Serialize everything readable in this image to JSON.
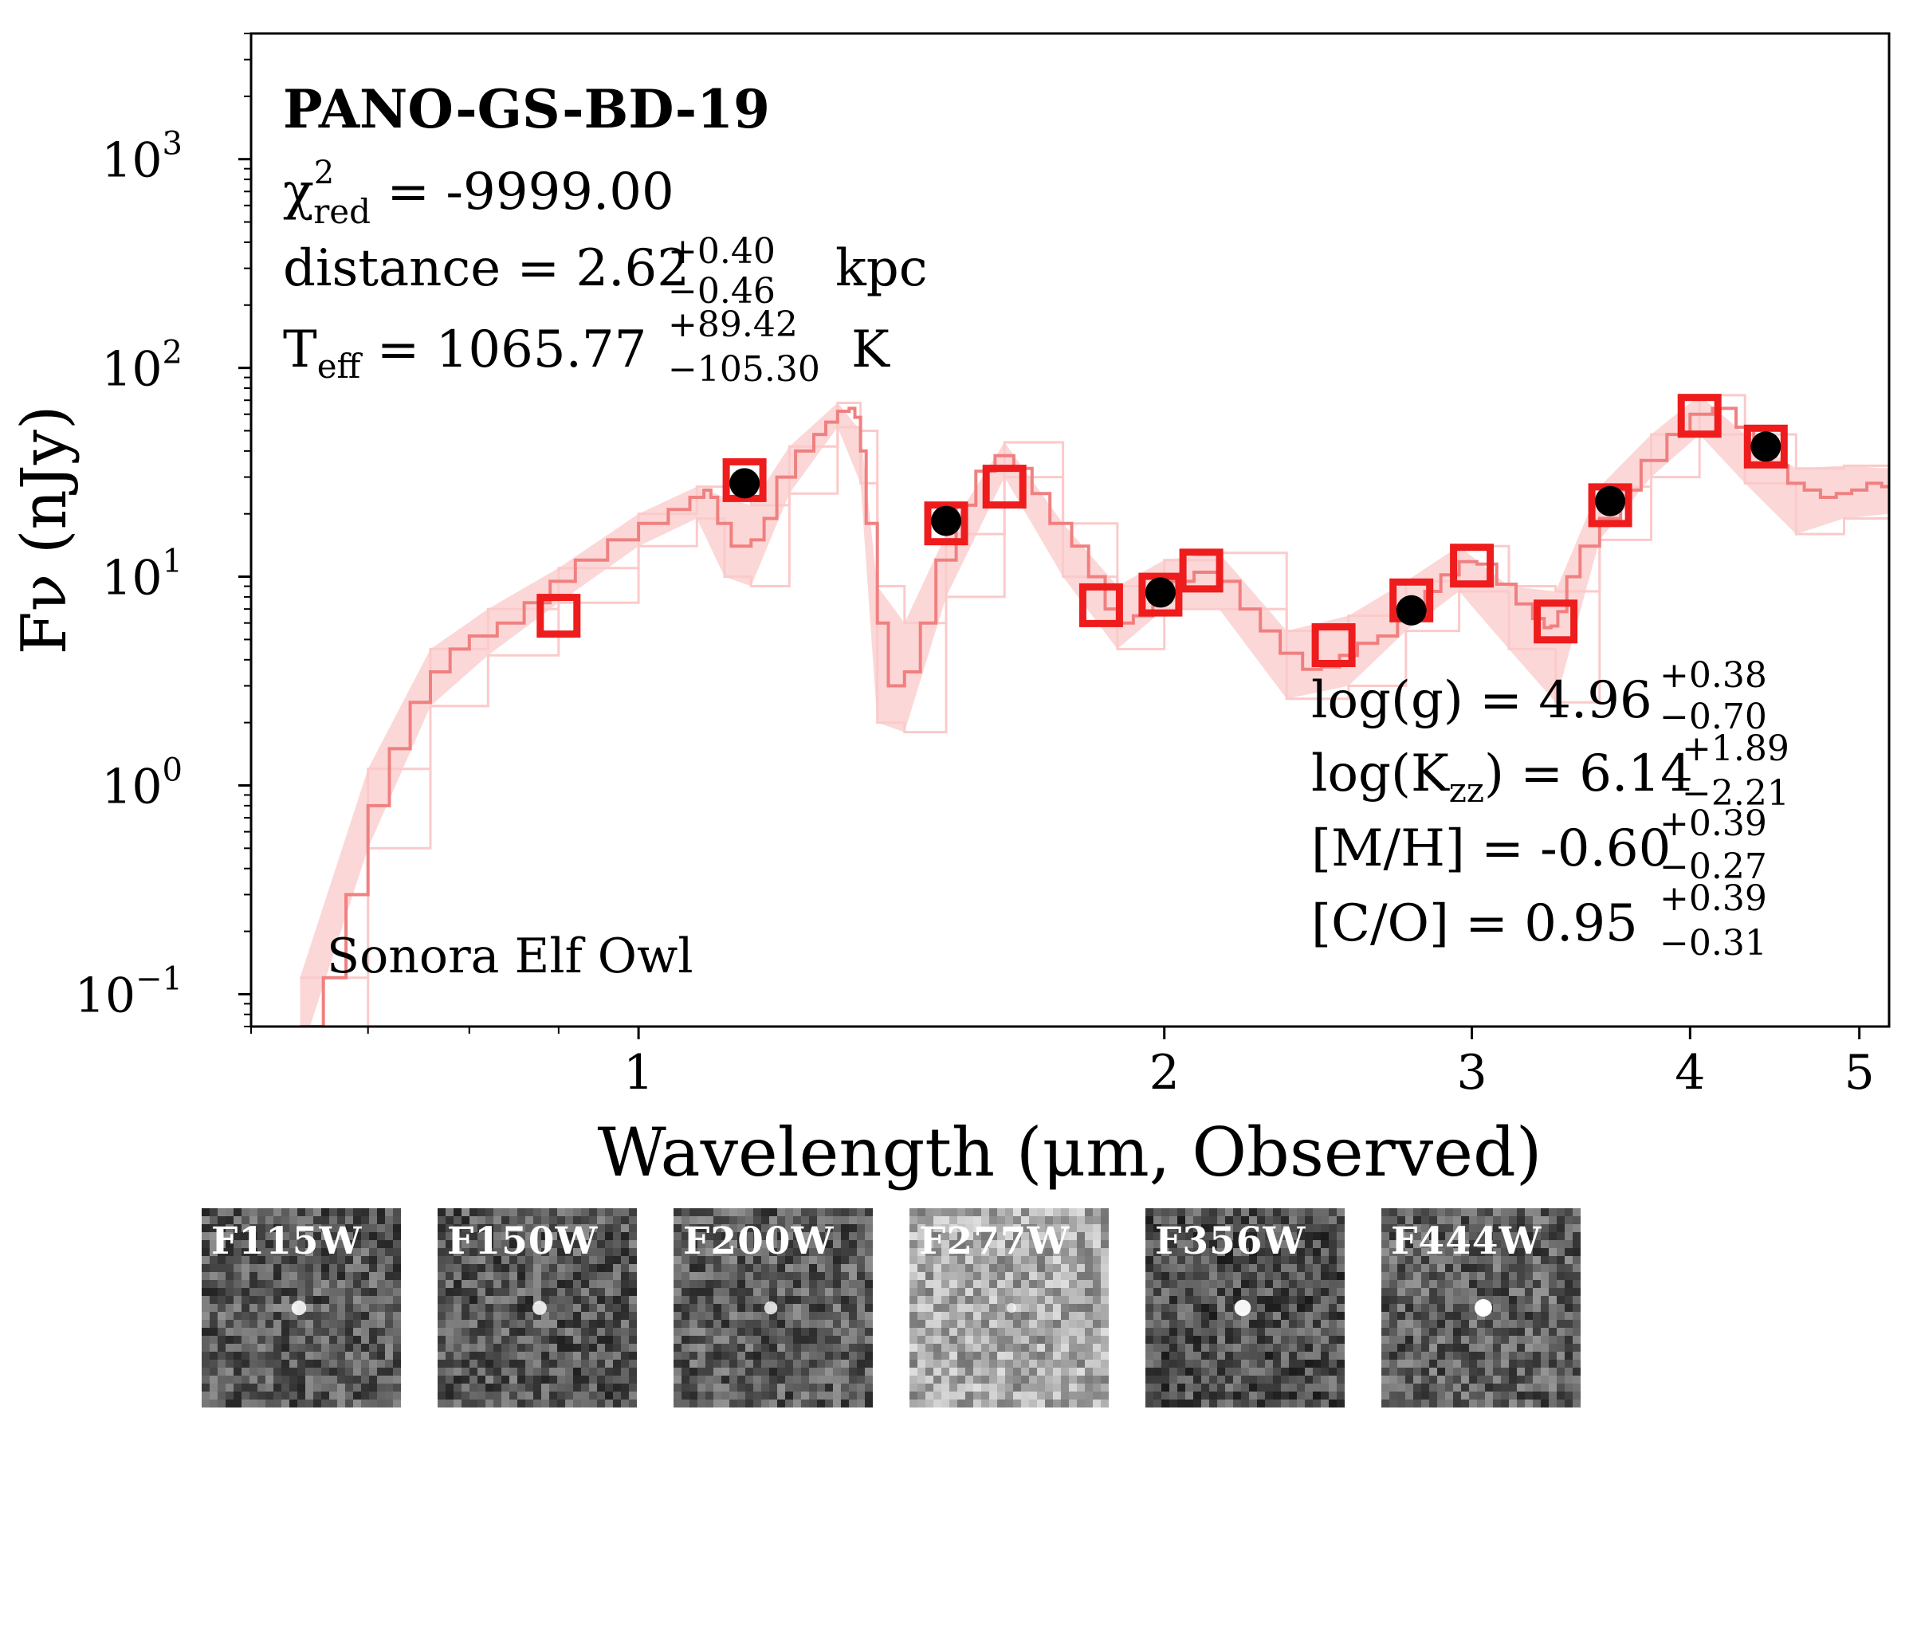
{
  "chart_data": {
    "type": "scatter",
    "title": "PANO-GS-BD-19",
    "xlabel": "Wavelength (μm, Observed)",
    "ylabel": "Fν (nJy)",
    "xscale": "log",
    "yscale": "log",
    "xlim": [
      0.6,
      5.2
    ],
    "ylim": [
      0.07,
      4000
    ],
    "xticks": [
      {
        "value": 1,
        "label": "1"
      },
      {
        "value": 2,
        "label": "2"
      },
      {
        "value": 3,
        "label": "3"
      },
      {
        "value": 4,
        "label": "4"
      },
      {
        "value": 5,
        "label": "5"
      }
    ],
    "yticks": [
      {
        "value": 0.1,
        "base": "10",
        "exp": "−1"
      },
      {
        "value": 1,
        "base": "10",
        "exp": "0"
      },
      {
        "value": 10,
        "base": "10",
        "exp": "1"
      },
      {
        "value": 100,
        "base": "10",
        "exp": "2"
      },
      {
        "value": 1000,
        "base": "10",
        "exp": "3"
      }
    ],
    "annotations": {
      "model_name": "Sonora Elf Owl",
      "chi2": {
        "symbol": "χ",
        "sup": "2",
        "sub": "red",
        "text": " = -9999.00"
      },
      "distance": {
        "label": "distance = 2.62",
        "plus": "+0.40",
        "minus": "−0.46",
        "unit": "kpc"
      },
      "teff": {
        "label_main": "T",
        "label_sub": "eff",
        "value": " = 1065.77",
        "plus": "+89.42",
        "minus": "−105.30",
        "unit": "K"
      },
      "logg": {
        "label": "log(g) = 4.96",
        "plus": "+0.38",
        "minus": "−0.70"
      },
      "logkzz": {
        "label_a": "log(K",
        "label_sub": "zz",
        "label_b": ") = 6.14",
        "plus": "+1.89",
        "minus": "−2.21"
      },
      "mh": {
        "label": "[M/H] = -0.60",
        "plus": "+0.39",
        "minus": "−0.27"
      },
      "co": {
        "label": "[C/O] = 0.95",
        "plus": "+0.39",
        "minus": "−0.31"
      }
    },
    "model_photometry": [
      {
        "x": 0.9,
        "y": 6.5
      },
      {
        "x": 1.15,
        "y": 29
      },
      {
        "x": 1.5,
        "y": 18
      },
      {
        "x": 1.62,
        "y": 27
      },
      {
        "x": 1.84,
        "y": 7.3
      },
      {
        "x": 1.99,
        "y": 8.2
      },
      {
        "x": 2.1,
        "y": 10.7
      },
      {
        "x": 2.5,
        "y": 4.7
      },
      {
        "x": 2.77,
        "y": 7.7
      },
      {
        "x": 3.0,
        "y": 11.3
      },
      {
        "x": 3.35,
        "y": 6.1
      },
      {
        "x": 3.6,
        "y": 22
      },
      {
        "x": 4.05,
        "y": 59
      },
      {
        "x": 4.42,
        "y": 42
      }
    ],
    "observed_photometry": [
      {
        "x": 1.15,
        "y": 28
      },
      {
        "x": 1.5,
        "y": 18.5
      },
      {
        "x": 1.99,
        "y": 8.4
      },
      {
        "x": 2.77,
        "y": 6.9
      },
      {
        "x": 3.6,
        "y": 23
      },
      {
        "x": 4.42,
        "y": 42
      }
    ],
    "model_spectrum": {
      "x": [
        0.64,
        0.66,
        0.68,
        0.7,
        0.72,
        0.74,
        0.76,
        0.78,
        0.8,
        0.83,
        0.86,
        0.89,
        0.92,
        0.96,
        1.0,
        1.04,
        1.07,
        1.09,
        1.1,
        1.11,
        1.13,
        1.16,
        1.18,
        1.2,
        1.23,
        1.26,
        1.28,
        1.3,
        1.32,
        1.33,
        1.34,
        1.35,
        1.37,
        1.39,
        1.42,
        1.45,
        1.48,
        1.52,
        1.56,
        1.6,
        1.64,
        1.68,
        1.72,
        1.77,
        1.81,
        1.85,
        1.88,
        1.92,
        1.97,
        2.02,
        2.08,
        2.15,
        2.21,
        2.27,
        2.33,
        2.4,
        2.46,
        2.52,
        2.58,
        2.65,
        2.72,
        2.77,
        2.82,
        2.88,
        2.95,
        3.02,
        3.1,
        3.18,
        3.25,
        3.3,
        3.33,
        3.36,
        3.4,
        3.46,
        3.55,
        3.65,
        3.75,
        3.88,
        4.0,
        4.12,
        4.25,
        4.35,
        4.45,
        4.55,
        4.65,
        4.75,
        4.85,
        4.95,
        5.05,
        5.15,
        5.2
      ],
      "y": [
        0.07,
        0.12,
        0.3,
        0.8,
        1.5,
        2.5,
        3.5,
        4.5,
        5.2,
        6.0,
        7.5,
        9.5,
        12,
        15,
        18,
        21,
        24,
        26,
        24,
        18,
        14,
        15,
        19,
        30,
        40,
        48,
        55,
        62,
        64,
        58,
        40,
        18,
        6,
        3.0,
        3.5,
        6,
        12,
        22,
        32,
        38,
        33,
        25,
        18,
        14,
        10,
        7.0,
        6.0,
        6.5,
        8.0,
        9.5,
        10.5,
        9.5,
        7.0,
        5.5,
        4.3,
        3.6,
        3.7,
        4.2,
        4.8,
        5.2,
        6.2,
        7.2,
        8.5,
        10.2,
        11.8,
        11.5,
        9.2,
        7.4,
        6.3,
        5.7,
        5.8,
        6.8,
        10,
        14,
        19,
        26,
        36,
        48,
        60,
        64,
        52,
        42,
        34,
        28,
        26,
        24,
        25,
        26,
        28,
        27,
        27
      ]
    },
    "model_spectrum_upper": {
      "x": [
        0.64,
        0.7,
        0.76,
        0.82,
        0.9,
        1.0,
        1.08,
        1.12,
        1.16,
        1.22,
        1.3,
        1.34,
        1.37,
        1.42,
        1.5,
        1.62,
        1.75,
        1.88,
        2.0,
        2.15,
        2.35,
        2.55,
        2.75,
        2.95,
        3.15,
        3.35,
        3.55,
        3.8,
        4.05,
        4.3,
        4.6,
        4.9,
        5.2
      ],
      "y": [
        0.12,
        1.2,
        4.5,
        7.0,
        11,
        20,
        27,
        24,
        22,
        42,
        68,
        50,
        9,
        6,
        16,
        44,
        18,
        9,
        12,
        13,
        5.5,
        6.5,
        9.5,
        14,
        9,
        8.5,
        27,
        48,
        74,
        48,
        33,
        34,
        33
      ]
    },
    "model_spectrum_lower": {
      "x": [
        0.64,
        0.7,
        0.76,
        0.82,
        0.9,
        1.0,
        1.08,
        1.12,
        1.16,
        1.22,
        1.3,
        1.34,
        1.37,
        1.42,
        1.5,
        1.62,
        1.75,
        1.88,
        2.0,
        2.15,
        2.35,
        2.55,
        2.75,
        2.95,
        3.15,
        3.35,
        3.55,
        3.8,
        4.05,
        4.3,
        4.6,
        4.9,
        5.2
      ],
      "y": [
        0.05,
        0.5,
        2.4,
        4.2,
        7.5,
        14,
        19,
        10,
        9,
        25,
        52,
        28,
        2.0,
        1.8,
        8,
        30,
        10,
        4.5,
        7,
        7,
        2.6,
        3.0,
        5.5,
        8.5,
        4.5,
        2.5,
        15,
        30,
        48,
        28,
        16,
        19,
        20
      ]
    }
  },
  "thumbnails": [
    {
      "filter": "F115W",
      "bg": "#5a5a5a",
      "source_brightness": 0.75
    },
    {
      "filter": "F150W",
      "bg": "#575757",
      "source_brightness": 0.7
    },
    {
      "filter": "F200W",
      "bg": "#5c5c5c",
      "source_brightness": 0.6
    },
    {
      "filter": "F277W",
      "bg": "#a8a8a8",
      "source_brightness": 0.3
    },
    {
      "filter": "F356W",
      "bg": "#505050",
      "source_brightness": 0.9
    },
    {
      "filter": "F444W",
      "bg": "#5e5e5e",
      "source_brightness": 1.0
    }
  ],
  "colors": {
    "model_line": "#f08080",
    "model_band": "#fbcaca",
    "model_square": "#ee1c1c",
    "observed_dot": "#000000",
    "axis": "#000000"
  }
}
